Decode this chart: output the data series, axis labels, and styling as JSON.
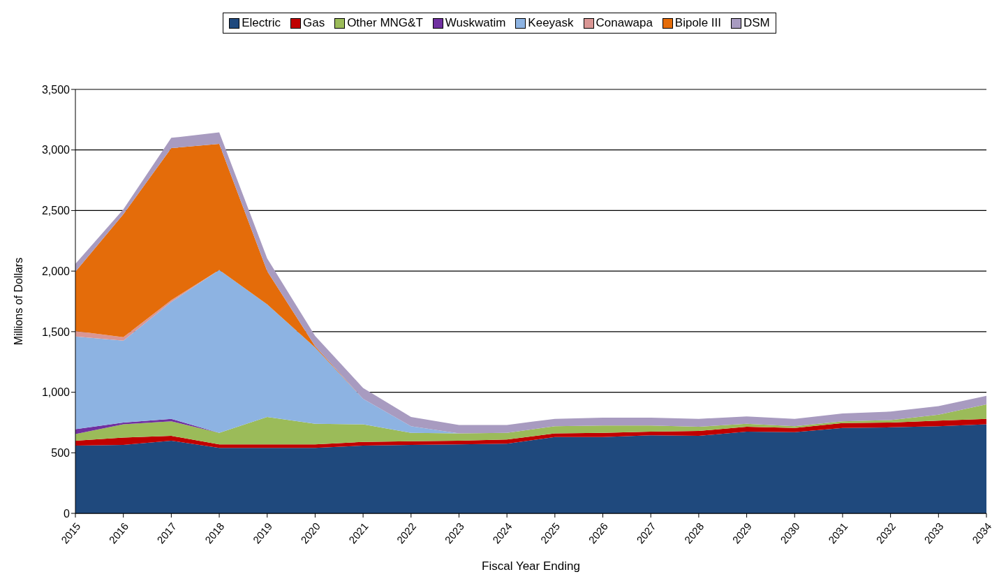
{
  "chart_data": {
    "type": "area",
    "stacked": true,
    "xlabel": "Fiscal Year Ending",
    "ylabel": "Millions of Dollars",
    "categories": [
      "2015",
      "2016",
      "2017",
      "2018",
      "2019",
      "2020",
      "2021",
      "2022",
      "2023",
      "2024",
      "2025",
      "2026",
      "2027",
      "2028",
      "2029",
      "2030",
      "2031",
      "2032",
      "2033",
      "2034"
    ],
    "series": [
      {
        "name": "Electric",
        "color": "#1f497d",
        "values": [
          560,
          565,
          600,
          540,
          540,
          540,
          560,
          565,
          570,
          575,
          630,
          630,
          645,
          640,
          675,
          670,
          705,
          710,
          720,
          735
        ]
      },
      {
        "name": "Gas",
        "color": "#c00000",
        "values": [
          40,
          60,
          40,
          30,
          30,
          30,
          30,
          30,
          30,
          35,
          30,
          35,
          30,
          40,
          40,
          35,
          40,
          40,
          45,
          45
        ]
      },
      {
        "name": "Other MNG&T",
        "color": "#9bbb59",
        "values": [
          55,
          110,
          120,
          95,
          225,
          170,
          145,
          70,
          60,
          55,
          60,
          60,
          50,
          35,
          25,
          15,
          15,
          20,
          50,
          120
        ]
      },
      {
        "name": "Wuskwatim",
        "color": "#7030a0",
        "values": [
          40,
          15,
          20,
          0,
          null,
          null,
          null,
          null,
          null,
          null,
          null,
          null,
          null,
          null,
          null,
          null,
          null,
          null,
          null,
          null
        ]
      },
      {
        "name": "Keeyask",
        "color": "#8db3e2",
        "values": [
          765,
          675,
          965,
          1345,
          930,
          630,
          210,
          55,
          0,
          null,
          null,
          null,
          null,
          null,
          null,
          null,
          null,
          null,
          null,
          null
        ]
      },
      {
        "name": "Conawapa",
        "color": "#d99694",
        "values": [
          45,
          30,
          15,
          0,
          null,
          null,
          null,
          null,
          null,
          null,
          null,
          null,
          null,
          null,
          null,
          null,
          null,
          null,
          null,
          null
        ]
      },
      {
        "name": "Bipole III",
        "color": "#e46c0a",
        "values": [
          490,
          1015,
          1255,
          1040,
          275,
          10,
          0,
          null,
          null,
          null,
          null,
          null,
          null,
          null,
          null,
          null,
          null,
          null,
          null,
          null
        ]
      },
      {
        "name": "DSM",
        "color": "#a89bc0",
        "values": [
          65,
          40,
          85,
          95,
          105,
          85,
          90,
          75,
          70,
          65,
          60,
          65,
          65,
          65,
          60,
          60,
          65,
          70,
          70,
          70
        ]
      }
    ],
    "ylim": [
      0,
      3500
    ],
    "yticks": [
      0,
      500,
      {
        "value": 1000,
        "label": "1,000"
      },
      {
        "value": 1500,
        "label": "1,500"
      },
      {
        "value": 2000,
        "label": "2,000"
      },
      {
        "value": 2500,
        "label": "2,500"
      },
      {
        "value": 3000,
        "label": "3,000"
      },
      {
        "value": 3500,
        "label": "3,500"
      }
    ],
    "grid": "y",
    "legend": "top"
  }
}
